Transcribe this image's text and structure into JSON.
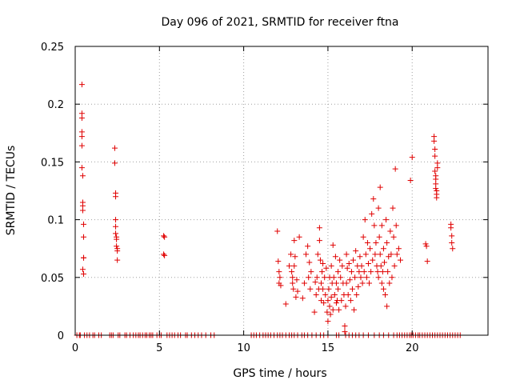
{
  "chart_data": {
    "type": "scatter",
    "title": "Day 096 of 2021, SRMTID for receiver ftna",
    "xlabel": "GPS time / hours",
    "ylabel": "SRMTID / TECUs",
    "xlim": [
      0,
      24.5
    ],
    "ylim": [
      0,
      0.25
    ],
    "x_ticks": [
      0,
      5,
      10,
      15,
      20
    ],
    "y_ticks": [
      0,
      0.05,
      0.1,
      0.15,
      0.2,
      0.25
    ],
    "x_tick_labels": [
      "0",
      "5",
      "10",
      "15",
      "20"
    ],
    "y_tick_labels": [
      "0",
      "0.05",
      "0.1",
      "0.15",
      "0.2",
      "0.25"
    ],
    "grid": true,
    "marker": "+",
    "marker_color": "#e00000",
    "series": [
      {
        "name": "SRMTID",
        "x": [
          0.4,
          0.4,
          0.4,
          0.4,
          0.4,
          0.4,
          0.4,
          0.45,
          0.45,
          0.45,
          0.45,
          0.5,
          0.5,
          0.5,
          0.5,
          0.45,
          0.5,
          2.35,
          2.35,
          2.4,
          2.4,
          2.4,
          2.4,
          2.4,
          2.45,
          2.45,
          2.45,
          2.5,
          2.5,
          2.5,
          5.25,
          5.3,
          5.25,
          5.3,
          12.0,
          12.05,
          12.1,
          12.1,
          12.15,
          12.2,
          12.5,
          12.7,
          12.8,
          12.85,
          12.9,
          12.9,
          12.95,
          13.0,
          13.0,
          13.05,
          13.1,
          13.15,
          13.2,
          13.3,
          13.5,
          13.6,
          13.7,
          13.8,
          13.85,
          13.9,
          13.95,
          14.0,
          14.2,
          14.25,
          14.3,
          14.35,
          14.4,
          14.45,
          14.5,
          14.5,
          14.55,
          14.6,
          14.6,
          14.65,
          14.7,
          14.7,
          14.75,
          14.8,
          14.85,
          14.9,
          14.95,
          15.0,
          15.0,
          15.05,
          15.1,
          15.1,
          15.15,
          15.2,
          15.2,
          15.25,
          15.3,
          15.3,
          15.35,
          15.4,
          15.45,
          15.5,
          15.5,
          15.55,
          15.6,
          15.6,
          15.65,
          15.7,
          15.75,
          15.8,
          15.85,
          15.9,
          15.95,
          16.0,
          16.0,
          16.05,
          16.1,
          16.1,
          16.15,
          16.2,
          16.25,
          16.3,
          16.35,
          16.4,
          16.45,
          16.5,
          16.55,
          16.6,
          16.65,
          16.7,
          16.75,
          16.8,
          16.85,
          16.9,
          16.95,
          17.0,
          17.05,
          17.1,
          17.15,
          17.2,
          17.25,
          17.3,
          17.35,
          17.4,
          17.45,
          17.5,
          17.55,
          17.6,
          17.65,
          17.7,
          17.75,
          17.8,
          17.85,
          17.9,
          17.95,
          18.0,
          18.0,
          18.05,
          18.1,
          18.1,
          18.15,
          18.2,
          18.2,
          18.25,
          18.3,
          18.3,
          18.35,
          18.4,
          18.45,
          18.5,
          18.5,
          18.55,
          18.6,
          18.65,
          18.7,
          18.75,
          18.8,
          18.85,
          18.9,
          18.95,
          19.0,
          19.05,
          19.1,
          19.2,
          19.3,
          19.9,
          20.0,
          20.8,
          20.85,
          20.9,
          21.3,
          21.3,
          21.35,
          21.35,
          21.35,
          21.4,
          21.4,
          21.4,
          21.4,
          21.45,
          21.45,
          21.45,
          21.5,
          21.5,
          22.3,
          22.3,
          22.35,
          22.35,
          22.4
        ],
        "y": [
          0.217,
          0.192,
          0.188,
          0.176,
          0.172,
          0.164,
          0.145,
          0.138,
          0.115,
          0.112,
          0.108,
          0.096,
          0.085,
          0.067,
          0.067,
          0.057,
          0.053,
          0.162,
          0.149,
          0.123,
          0.12,
          0.1,
          0.094,
          0.088,
          0.085,
          0.083,
          0.077,
          0.075,
          0.073,
          0.065,
          0.086,
          0.085,
          0.07,
          0.069,
          0.09,
          0.064,
          0.055,
          0.045,
          0.05,
          0.043,
          0.027,
          0.06,
          0.07,
          0.055,
          0.05,
          0.045,
          0.04,
          0.082,
          0.06,
          0.068,
          0.033,
          0.048,
          0.038,
          0.085,
          0.032,
          0.045,
          0.07,
          0.077,
          0.05,
          0.063,
          0.04,
          0.055,
          0.02,
          0.046,
          0.035,
          0.05,
          0.07,
          0.04,
          0.093,
          0.082,
          0.065,
          0.045,
          0.03,
          0.055,
          0.062,
          0.04,
          0.028,
          0.05,
          0.035,
          0.058,
          0.02,
          0.012,
          0.03,
          0.04,
          0.025,
          0.05,
          0.018,
          0.033,
          0.06,
          0.045,
          0.022,
          0.078,
          0.05,
          0.035,
          0.068,
          0.028,
          0.045,
          0.03,
          0.055,
          0.04,
          0.022,
          0.065,
          0.05,
          0.03,
          0.06,
          0.045,
          0.035,
          0.008,
          0.003,
          0.025,
          0.07,
          0.045,
          0.058,
          0.035,
          0.062,
          0.048,
          0.03,
          0.055,
          0.04,
          0.065,
          0.022,
          0.05,
          0.073,
          0.035,
          0.06,
          0.042,
          0.055,
          0.068,
          0.05,
          0.06,
          0.045,
          0.085,
          0.055,
          0.1,
          0.07,
          0.05,
          0.08,
          0.062,
          0.045,
          0.075,
          0.055,
          0.105,
          0.065,
          0.118,
          0.095,
          0.07,
          0.08,
          0.06,
          0.055,
          0.11,
          0.05,
          0.085,
          0.128,
          0.07,
          0.06,
          0.095,
          0.045,
          0.055,
          0.075,
          0.04,
          0.063,
          0.035,
          0.1,
          0.08,
          0.025,
          0.055,
          0.068,
          0.045,
          0.09,
          0.07,
          0.05,
          0.11,
          0.085,
          0.06,
          0.144,
          0.095,
          0.07,
          0.075,
          0.065,
          0.134,
          0.154,
          0.079,
          0.077,
          0.064,
          0.172,
          0.168,
          0.161,
          0.155,
          0.142,
          0.138,
          0.135,
          0.131,
          0.127,
          0.125,
          0.122,
          0.119,
          0.149,
          0.145,
          0.096,
          0.093,
          0.086,
          0.08,
          0.075
        ]
      }
    ],
    "zero_row_x": [
      0.1,
      0.25,
      0.3,
      0.55,
      0.7,
      0.85,
      1.05,
      1.15,
      1.4,
      1.55,
      2.05,
      2.15,
      2.25,
      2.55,
      2.65,
      2.95,
      3.05,
      3.25,
      3.45,
      3.6,
      3.75,
      3.85,
      4.0,
      4.15,
      4.25,
      4.4,
      4.5,
      4.6,
      4.85,
      5.0,
      5.1,
      5.45,
      5.6,
      5.75,
      5.9,
      6.1,
      6.25,
      6.55,
      6.65,
      6.9,
      7.1,
      7.3,
      7.5,
      7.75,
      8.05,
      8.25,
      10.45,
      10.6,
      10.75,
      10.95,
      11.15,
      11.3,
      11.45,
      11.6,
      11.8,
      12.0,
      12.15,
      12.3,
      12.5,
      12.7,
      12.85,
      13.0,
      13.2,
      13.45,
      13.6,
      13.8,
      14.05,
      14.3,
      14.55,
      14.75,
      15.0,
      15.5,
      15.65,
      16.05,
      16.25,
      16.45,
      16.65,
      16.85,
      17.1,
      17.4,
      17.75,
      18.05,
      18.3,
      18.6,
      18.9,
      19.1,
      19.25,
      19.4,
      19.55,
      19.7,
      19.85,
      19.95,
      20.05,
      20.2,
      20.35,
      20.45,
      20.6,
      20.75,
      20.9,
      21.05,
      21.2,
      21.35,
      21.5,
      21.65,
      21.8,
      21.95,
      22.1,
      22.25,
      22.4,
      22.55,
      22.7,
      22.85
    ]
  }
}
